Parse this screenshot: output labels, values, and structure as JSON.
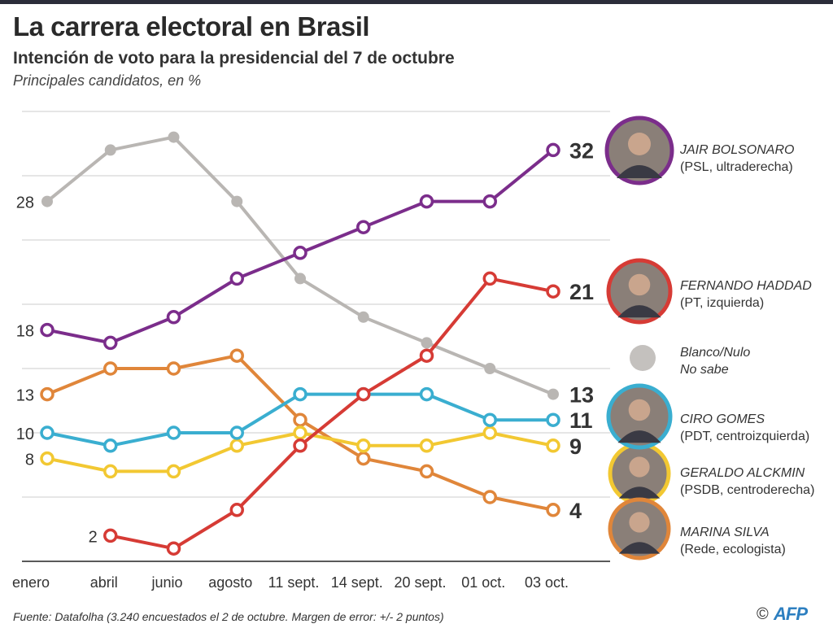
{
  "header": {
    "title": "La carrera electoral en Brasil",
    "subtitle": "Intención de voto para la presidencial del 7 de octubre",
    "note": "Principales candidatos, en %"
  },
  "footer": {
    "source": "Fuente: Datafolha (3.240 encuestados el 2 de octubre. Margen de error: +/- 2 puntos)",
    "copyright": "©",
    "logo": "AFP"
  },
  "chart_data": {
    "type": "line",
    "title": "La carrera electoral en Brasil",
    "ylabel": "%",
    "ylim": [
      0,
      35
    ],
    "grid": true,
    "categories": [
      "enero",
      "abril",
      "junio",
      "agosto",
      "11 sept.",
      "14 sept.",
      "20 sept.",
      "01 oct.",
      "03 oct."
    ],
    "series": [
      {
        "name": "JAIR BOLSONARO",
        "party": "(PSL, ultraderecha)",
        "color": "#7b2d8b",
        "values": [
          18,
          17,
          19,
          22,
          24,
          26,
          28,
          28,
          32
        ],
        "start_label": "18",
        "end_label": "32"
      },
      {
        "name": "Blanco/Nulo",
        "party": "No sabe",
        "color": "#b9b6b3",
        "values": [
          28,
          32,
          33,
          28,
          22,
          19,
          17,
          15,
          13
        ],
        "start_label": "28",
        "end_label": "13"
      },
      {
        "name": "FERNANDO HADDAD",
        "party": "(PT, izquierda)",
        "color": "#d63b35",
        "values": [
          null,
          2,
          1,
          4,
          9,
          13,
          16,
          22,
          21
        ],
        "start_label": "2",
        "end_label": "21"
      },
      {
        "name": "MARINA SILVA",
        "party": "(Rede, ecologista)",
        "color": "#e0863a",
        "values": [
          13,
          15,
          15,
          16,
          11,
          8,
          7,
          5,
          4
        ],
        "start_label": "13",
        "end_label": "4"
      },
      {
        "name": "CIRO GOMES",
        "party": "(PDT, centroizquierda)",
        "color": "#3aaed0",
        "values": [
          10,
          9,
          10,
          10,
          13,
          13,
          13,
          11,
          11
        ],
        "start_label": "10",
        "end_label": "11"
      },
      {
        "name": "GERALDO ALCKMIN",
        "party": "(PSDB, centroderecha)",
        "color": "#f2c832",
        "values": [
          8,
          7,
          7,
          9,
          10,
          9,
          9,
          10,
          9
        ],
        "start_label": "8",
        "end_label": "9"
      }
    ]
  }
}
